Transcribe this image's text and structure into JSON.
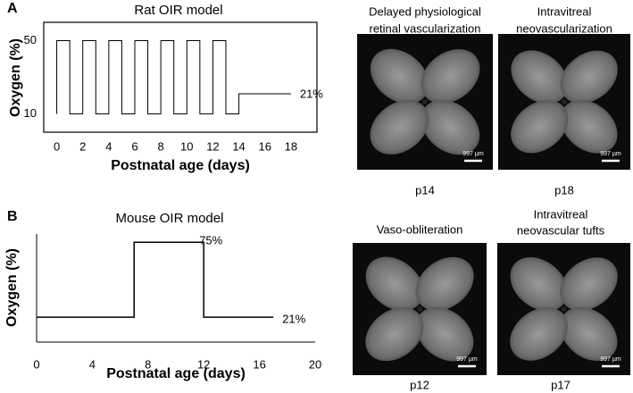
{
  "chart_data": [
    {
      "type": "line",
      "panel": "A",
      "title": "Rat OIR model",
      "x_label": "Postnatal age (days)",
      "y_label": "Oxygen (%)",
      "x": [
        0,
        0,
        1,
        1,
        2,
        2,
        3,
        3,
        4,
        4,
        5,
        5,
        6,
        6,
        7,
        7,
        8,
        8,
        9,
        9,
        10,
        10,
        11,
        11,
        12,
        12,
        13,
        13,
        14,
        14,
        18
      ],
      "values": [
        10,
        50,
        50,
        10,
        10,
        50,
        50,
        10,
        10,
        50,
        50,
        10,
        10,
        50,
        50,
        10,
        10,
        50,
        50,
        10,
        10,
        50,
        50,
        10,
        10,
        50,
        50,
        10,
        10,
        21,
        21
      ],
      "color": "#000000",
      "xlim": [
        -1,
        20
      ],
      "ylim": [
        0,
        60
      ],
      "xticks": [
        0,
        2,
        4,
        6,
        8,
        10,
        12,
        14,
        16,
        18
      ],
      "yticks": [
        10,
        50
      ],
      "box": true,
      "annotations": [
        "21%"
      ]
    },
    {
      "type": "line",
      "panel": "B",
      "title": "Mouse OIR model",
      "x_label": "Postnatal age (days)",
      "y_label": "Oxygen (%)",
      "x": [
        0,
        7,
        7,
        12,
        12,
        17
      ],
      "values": [
        21,
        21,
        75,
        75,
        21,
        21
      ],
      "color": "#000000",
      "xlim": [
        0,
        20
      ],
      "ylim": [
        3,
        81
      ],
      "xticks": [
        0,
        4,
        8,
        12,
        16,
        20
      ],
      "yticks": [],
      "box": false,
      "annotations": [
        "75%",
        "21%"
      ]
    }
  ],
  "images": [
    {
      "title": [
        "Delayed physiological",
        "retinal vascularization"
      ],
      "scale": "997 µm",
      "age": "p14"
    },
    {
      "title": [
        "Intravitreal",
        "neovascularization"
      ],
      "scale": "997 µm",
      "age": "p18"
    },
    {
      "title": [
        "Vaso-obliteration"
      ],
      "scale": "997 µm",
      "age": "p12"
    },
    {
      "title": [
        "Intravitreal",
        "neovascular tufts"
      ],
      "scale": "997 µm",
      "age": "p17"
    }
  ]
}
